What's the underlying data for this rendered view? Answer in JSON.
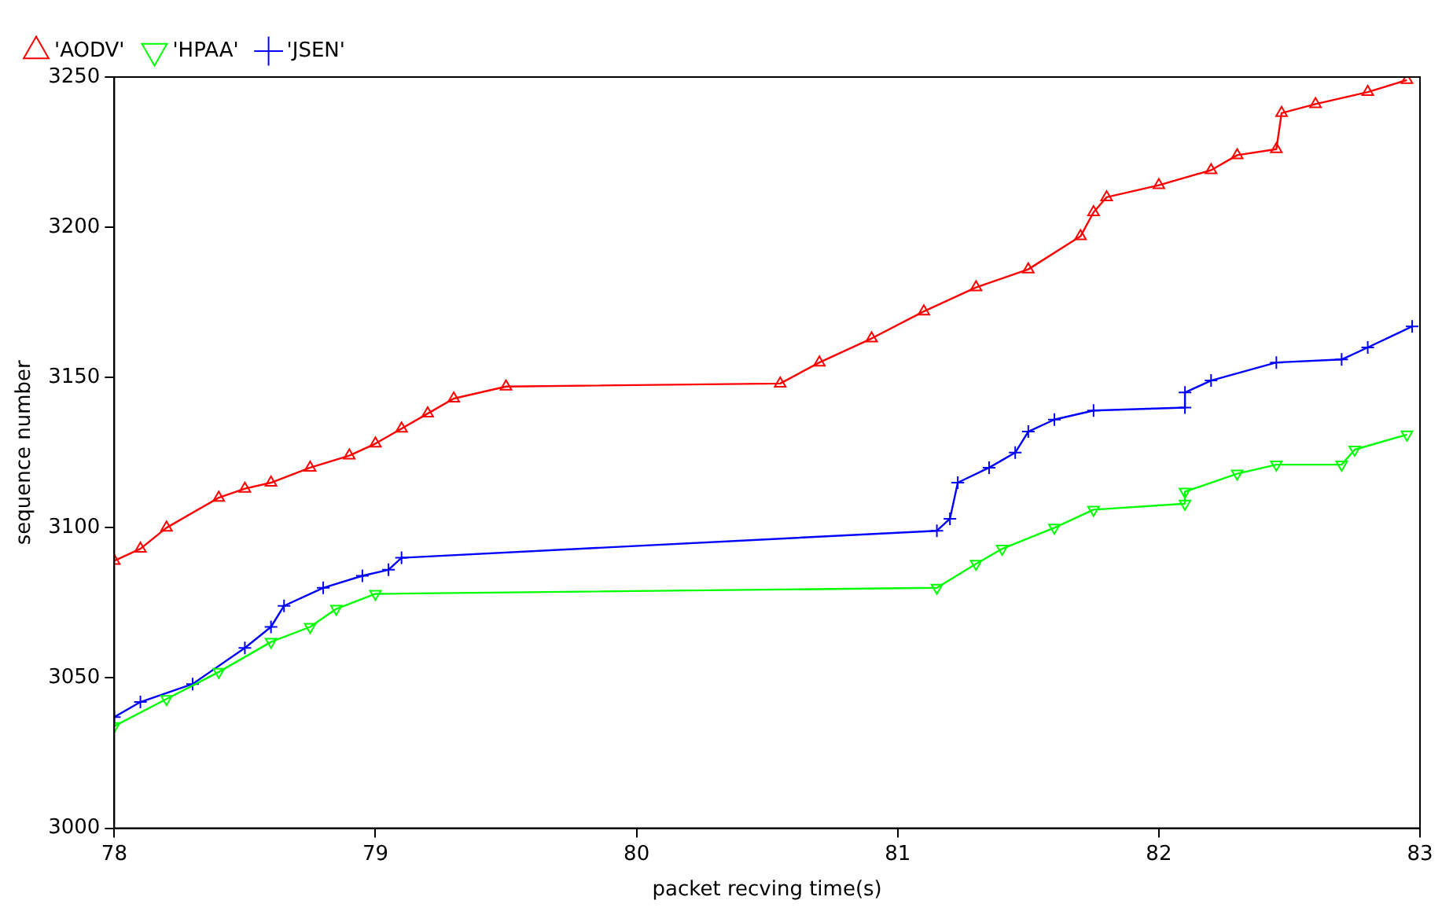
{
  "chart_data": {
    "type": "line",
    "xlabel": "packet recving time(s)",
    "ylabel": "sequence number",
    "xlim": [
      78,
      83
    ],
    "xticks": [
      78,
      79,
      80,
      81,
      82,
      83
    ],
    "ylim": [
      3000,
      3250
    ],
    "yticks": [
      3000,
      3050,
      3100,
      3150,
      3200,
      3250
    ],
    "grid": false,
    "legend": "top left",
    "line_style": "solid",
    "series": [
      {
        "name": "'AODV'",
        "color": "#ff0000",
        "marker": "triangle",
        "x": [
          78,
          78.1,
          78.2,
          78.4,
          78.5,
          78.6,
          78.75,
          78.9,
          79.0,
          79.1,
          79.2,
          79.3,
          79.5,
          80.55,
          80.7,
          80.9,
          81.1,
          81.3,
          81.5,
          81.7,
          81.75,
          81.8,
          82.0,
          82.2,
          82.3,
          82.45,
          82.47,
          82.6,
          82.8,
          82.95
        ],
        "values": [
          3089,
          3093,
          3100,
          3110,
          3113,
          3115,
          3120,
          3124,
          3128,
          3133,
          3138,
          3143,
          3147,
          3148,
          3155,
          3163,
          3172,
          3180,
          3186,
          3197,
          3205,
          3210,
          3214,
          3219,
          3224,
          3226,
          3238,
          3241,
          3245,
          3249
        ]
      },
      {
        "name": "'HPAA'",
        "color": "#00ff00",
        "marker": "triangle",
        "x": [
          78,
          78.2,
          78.4,
          78.6,
          78.75,
          78.85,
          79.0,
          81.15,
          81.3,
          81.4,
          81.6,
          81.75,
          82.1,
          82.1,
          82.3,
          82.45,
          82.7,
          82.75,
          82.95
        ],
        "values": [
          3034,
          3043,
          3052,
          3062,
          3067,
          3073,
          3078,
          3080,
          3088,
          3093,
          3100,
          3106,
          3108,
          3112,
          3118,
          3121,
          3121,
          3126,
          3131
        ]
      },
      {
        "name": "'JSEN'",
        "color": "#0000ff",
        "marker": "cross",
        "x": [
          78,
          78.1,
          78.3,
          78.5,
          78.6,
          78.65,
          78.8,
          78.95,
          79.05,
          79.1,
          81.15,
          81.2,
          81.23,
          81.35,
          81.45,
          81.5,
          81.6,
          81.75,
          82.1,
          82.1,
          82.2,
          82.45,
          82.7,
          82.8,
          82.97
        ],
        "values": [
          3037,
          3042,
          3048,
          3060,
          3067,
          3074,
          3080,
          3084,
          3086,
          3090,
          3099,
          3103,
          3115,
          3120,
          3125,
          3132,
          3136,
          3139,
          3140,
          3145,
          3149,
          3155,
          3156,
          3160,
          3167
        ]
      }
    ]
  }
}
